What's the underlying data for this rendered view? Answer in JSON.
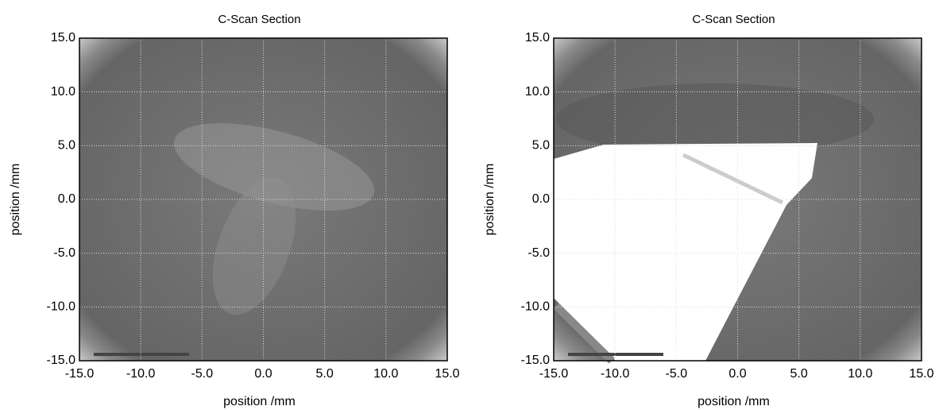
{
  "chart_data": [
    {
      "type": "heatmap",
      "title": "C-Scan Section",
      "xlabel": "position /mm",
      "ylabel": "position /mm",
      "xlim": [
        -15,
        15
      ],
      "ylim": [
        -15,
        15
      ],
      "grid": true,
      "xticks": [
        {
          "value": -15,
          "label": "-15.0"
        },
        {
          "value": -10,
          "label": "-10.0"
        },
        {
          "value": -5,
          "label": "-5.0"
        },
        {
          "value": 0,
          "label": "0.0"
        },
        {
          "value": 5,
          "label": "5.0"
        },
        {
          "value": 10,
          "label": "10.0"
        },
        {
          "value": 15,
          "label": "15.0"
        }
      ],
      "yticks": [
        {
          "value": -15,
          "label": "-15.0"
        },
        {
          "value": -10,
          "label": "-10.0"
        },
        {
          "value": -5,
          "label": "-5.0"
        },
        {
          "value": 0,
          "label": "0.0"
        },
        {
          "value": 5,
          "label": "5.0"
        },
        {
          "value": 10,
          "label": "10.0"
        },
        {
          "value": 15,
          "label": "15.0"
        }
      ]
    },
    {
      "type": "heatmap",
      "title": "C-Scan Section",
      "xlabel": "position /mm",
      "ylabel": "position /mm",
      "xlim": [
        -15,
        15
      ],
      "ylim": [
        -15,
        15
      ],
      "grid": true,
      "xticks": [
        {
          "value": -15,
          "label": "-15.0"
        },
        {
          "value": -10,
          "label": "-10.0"
        },
        {
          "value": -5,
          "label": "-5.0"
        },
        {
          "value": 0,
          "label": "0.0"
        },
        {
          "value": 5,
          "label": "5.0"
        },
        {
          "value": 10,
          "label": "10.0"
        },
        {
          "value": 15,
          "label": "15.0"
        }
      ],
      "yticks": [
        {
          "value": -15,
          "label": "-15.0"
        },
        {
          "value": -10,
          "label": "-10.0"
        },
        {
          "value": -5,
          "label": "-5.0"
        },
        {
          "value": 0,
          "label": "0.0"
        },
        {
          "value": 5,
          "label": "5.0"
        },
        {
          "value": 10,
          "label": "10.0"
        },
        {
          "value": 15,
          "label": "15.0"
        }
      ]
    }
  ]
}
